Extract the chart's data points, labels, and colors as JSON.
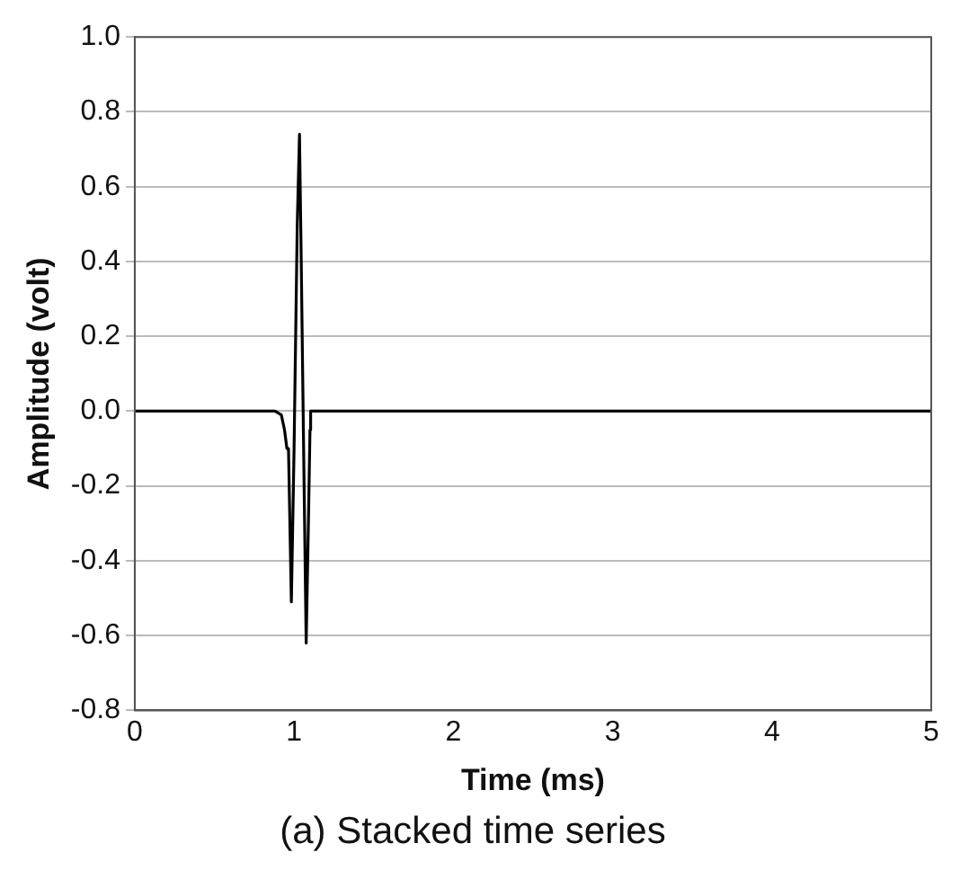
{
  "chart_data": {
    "type": "line",
    "title": "(a) Stacked time series",
    "xlabel": "Time (ms)",
    "ylabel": "Amplitude (volt)",
    "series": [
      {
        "color": "#000000",
        "x": [
          0,
          0.88,
          0.92,
          0.94,
          0.955,
          0.965,
          0.983,
          1.0,
          1.02,
          1.034,
          1.045,
          1.06,
          1.076,
          1.09,
          1.1,
          1.104,
          5
        ],
        "values": [
          0,
          0,
          -0.01,
          -0.05,
          -0.1,
          -0.1,
          -0.51,
          -0.1,
          0.5,
          0.74,
          0.4,
          -0.1,
          -0.62,
          -0.3,
          -0.05,
          0,
          0
        ]
      }
    ],
    "xlim": [
      0,
      5
    ],
    "xticks": [
      0,
      1,
      2,
      3,
      4,
      5
    ],
    "ylim": [
      -0.8,
      1.0
    ],
    "yticks": [
      -0.8,
      -0.6,
      -0.4,
      -0.2,
      {
        "value": 0,
        "label": "0.0"
      },
      0.2,
      0.4,
      0.6,
      0.8,
      {
        "value": 1,
        "label": "1.0"
      }
    ],
    "grid": "y",
    "legend": false,
    "marker": "none",
    "line_style": "solid"
  }
}
